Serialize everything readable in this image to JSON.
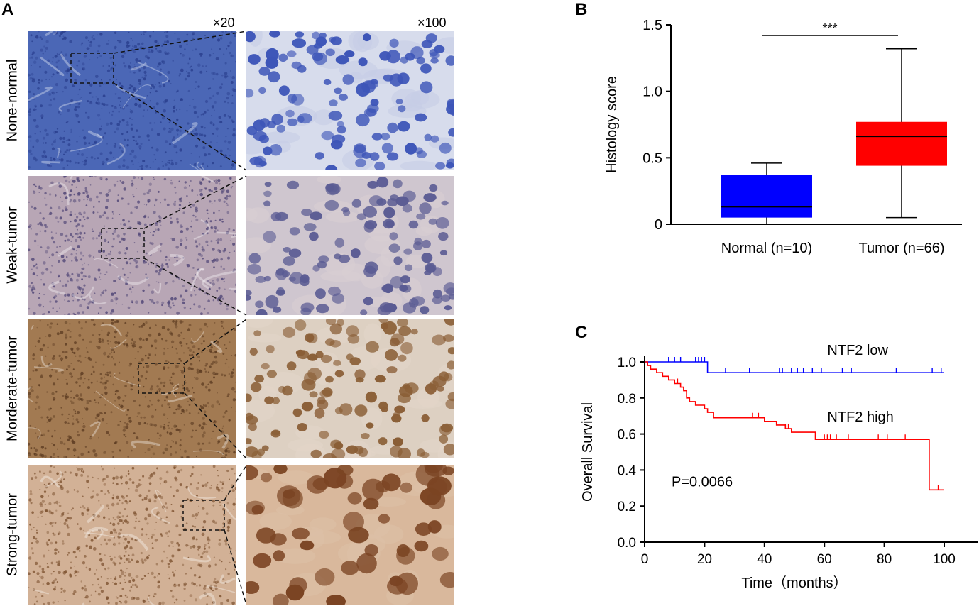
{
  "panel_a": {
    "label": "A",
    "mag_low": "×20",
    "mag_high": "×100",
    "rows": [
      {
        "label": "None-normal",
        "low_bg": "#4b67b6",
        "low_fg": "#2a3f8e",
        "high_bg": "#d7dcec",
        "cell": "#3d55b8",
        "stroma": "#c6cde6"
      },
      {
        "label": "Weak-tumor",
        "low_bg": "#b8a6b5",
        "low_fg": "#4f4576",
        "high_bg": "#cfc6cf",
        "cell": "#5a5b93",
        "stroma": "#d8cfd2"
      },
      {
        "label": "Morderate-tumor",
        "low_bg": "#a27a52",
        "low_fg": "#5d3c22",
        "high_bg": "#ddd0c2",
        "cell": "#8a5e36",
        "stroma": "#e3d6c8"
      },
      {
        "label": "Strong-tumor",
        "low_bg": "#d2b196",
        "low_fg": "#7d5230",
        "high_bg": "#d9b89c",
        "cell": "#7b4423",
        "stroma": "#dcc0a7"
      }
    ]
  },
  "panel_b": {
    "label": "B",
    "chart_data": {
      "type": "box",
      "ylabel": "Histology score",
      "ylim": [
        0,
        1.5
      ],
      "yticks": [
        "0",
        "0.5",
        "1.0",
        "1.5"
      ],
      "significance": "***",
      "groups": [
        {
          "name": "Normal (n=10)",
          "min": 0.0,
          "q1": 0.05,
          "median": 0.13,
          "q3": 0.37,
          "max": 0.46,
          "color": "#0000ff"
        },
        {
          "name": "Tumor (n=66)",
          "min": 0.05,
          "q1": 0.44,
          "median": 0.66,
          "q3": 0.77,
          "max": 1.32,
          "color": "#ff0000"
        }
      ]
    }
  },
  "panel_c": {
    "label": "C",
    "chart_data": {
      "type": "line",
      "xlabel": "Time（months）",
      "ylabel": "Overall Survival",
      "xlim": [
        0,
        100
      ],
      "ylim": [
        0,
        1.0
      ],
      "xticks": [
        "0",
        "20",
        "40",
        "60",
        "80",
        "100"
      ],
      "yticks": [
        "0.0",
        "0.2",
        "0.4",
        "0.6",
        "0.8",
        "1.0"
      ],
      "annotation": "P=0.0066",
      "series": [
        {
          "name": "NTF2 low",
          "color": "#0000ff",
          "steps": [
            [
              0,
              1.0
            ],
            [
              21,
              1.0
            ],
            [
              21,
              0.94
            ],
            [
              100,
              0.94
            ]
          ],
          "censors": [
            [
              8,
              1.0
            ],
            [
              10,
              1.0
            ],
            [
              12,
              1.0
            ],
            [
              17,
              1.0
            ],
            [
              18,
              1.0
            ],
            [
              19,
              1.0
            ],
            [
              20,
              1.0
            ],
            [
              27,
              0.94
            ],
            [
              35,
              0.94
            ],
            [
              45,
              0.94
            ],
            [
              46,
              0.94
            ],
            [
              49,
              0.94
            ],
            [
              51,
              0.94
            ],
            [
              53,
              0.94
            ],
            [
              56,
              0.94
            ],
            [
              59,
              0.94
            ],
            [
              66,
              0.94
            ],
            [
              69,
              0.94
            ],
            [
              84,
              0.94
            ],
            [
              96,
              0.94
            ],
            [
              99,
              0.94
            ]
          ]
        },
        {
          "name": "NTF2 high",
          "color": "#ff0000",
          "steps": [
            [
              0,
              1.0
            ],
            [
              1,
              1.0
            ],
            [
              1,
              0.98
            ],
            [
              2,
              0.98
            ],
            [
              2,
              0.96
            ],
            [
              4,
              0.96
            ],
            [
              4,
              0.94
            ],
            [
              6,
              0.94
            ],
            [
              6,
              0.92
            ],
            [
              8,
              0.92
            ],
            [
              8,
              0.9
            ],
            [
              10,
              0.9
            ],
            [
              10,
              0.88
            ],
            [
              12,
              0.88
            ],
            [
              12,
              0.86
            ],
            [
              13,
              0.86
            ],
            [
              13,
              0.84
            ],
            [
              14,
              0.84
            ],
            [
              14,
              0.8
            ],
            [
              15,
              0.8
            ],
            [
              15,
              0.78
            ],
            [
              17,
              0.78
            ],
            [
              17,
              0.76
            ],
            [
              20,
              0.76
            ],
            [
              20,
              0.74
            ],
            [
              21,
              0.74
            ],
            [
              21,
              0.72
            ],
            [
              23,
              0.72
            ],
            [
              23,
              0.69
            ],
            [
              40,
              0.69
            ],
            [
              40,
              0.67
            ],
            [
              44,
              0.67
            ],
            [
              44,
              0.65
            ],
            [
              47,
              0.65
            ],
            [
              47,
              0.63
            ],
            [
              49,
              0.63
            ],
            [
              49,
              0.61
            ],
            [
              57,
              0.61
            ],
            [
              57,
              0.57
            ],
            [
              95,
              0.57
            ],
            [
              95,
              0.29
            ],
            [
              100,
              0.29
            ]
          ],
          "censors": [
            [
              11,
              0.88
            ],
            [
              36,
              0.69
            ],
            [
              38,
              0.69
            ],
            [
              47,
              0.63
            ],
            [
              48,
              0.63
            ],
            [
              60,
              0.57
            ],
            [
              61,
              0.57
            ],
            [
              62,
              0.57
            ],
            [
              64,
              0.57
            ],
            [
              68,
              0.57
            ],
            [
              78,
              0.57
            ],
            [
              81,
              0.57
            ],
            [
              87,
              0.57
            ],
            [
              98,
              0.29
            ]
          ]
        }
      ]
    }
  }
}
